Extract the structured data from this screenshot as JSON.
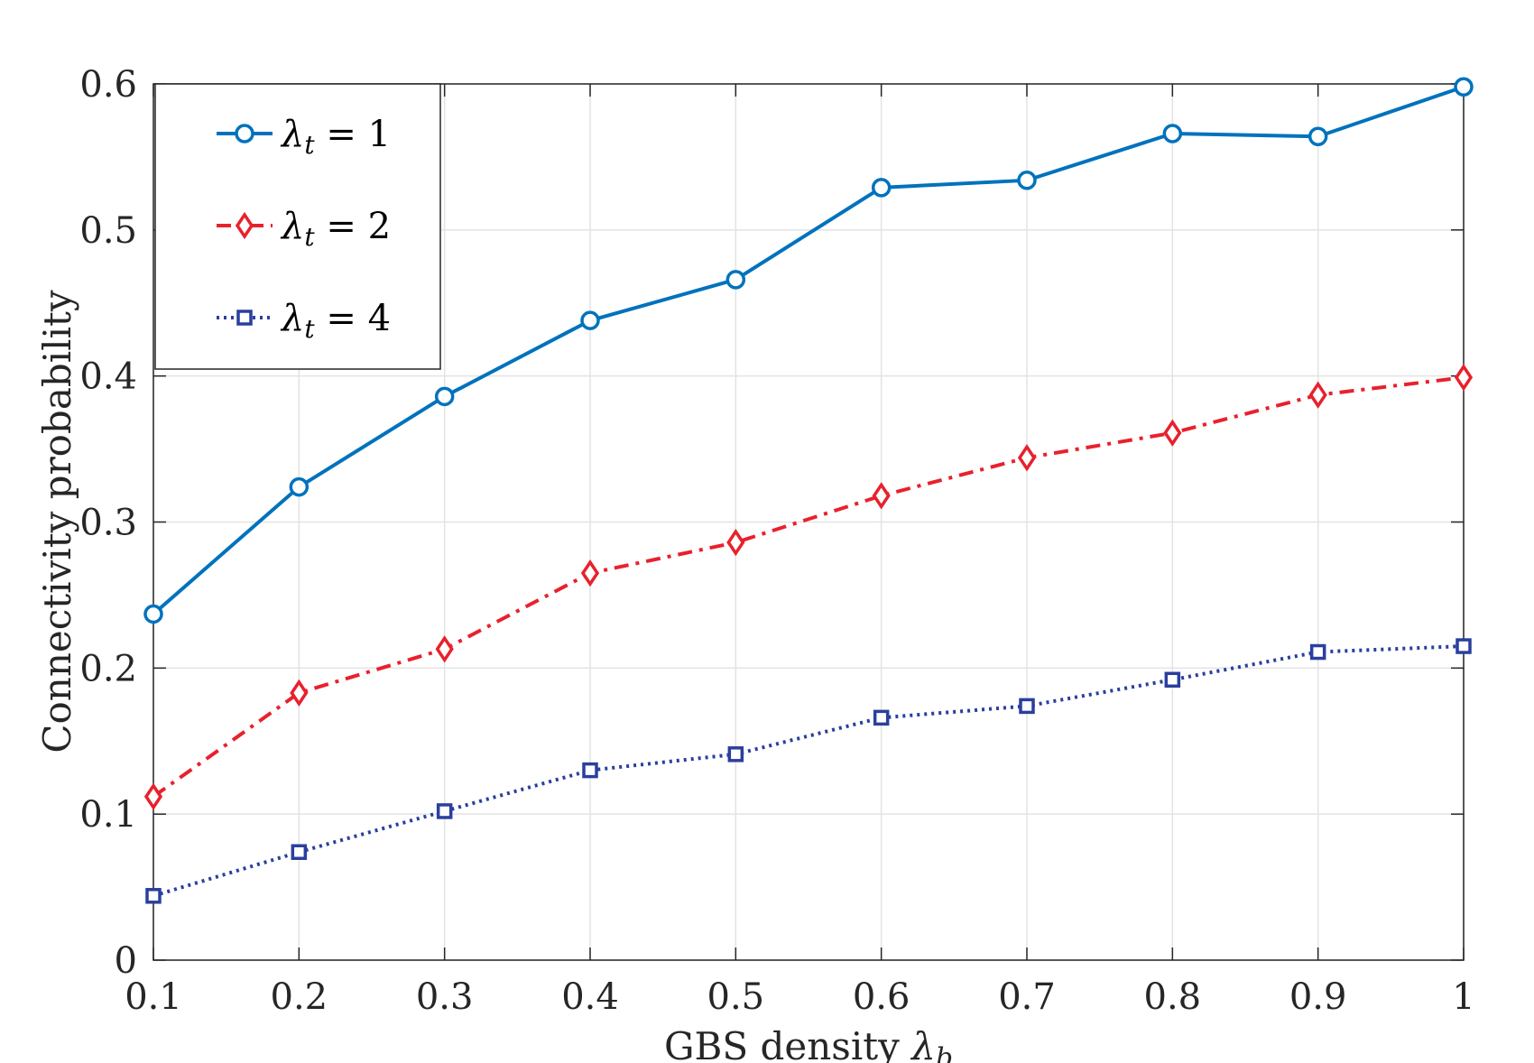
{
  "chart_data": {
    "type": "line",
    "xlabel": "GBS density",
    "xlabel_symbol": "λ",
    "xlabel_subscript": "b",
    "ylabel": "Connectivity probability",
    "x": [
      0.1,
      0.2,
      0.3,
      0.4,
      0.5,
      0.6,
      0.7,
      0.8,
      0.9,
      1.0
    ],
    "xlim": [
      0.1,
      1.0
    ],
    "ylim": [
      0,
      0.6
    ],
    "xticks": [
      "0.1",
      "0.2",
      "0.3",
      "0.4",
      "0.5",
      "0.6",
      "0.7",
      "0.8",
      "0.9",
      "1"
    ],
    "yticks": [
      "0",
      "0.1",
      "0.2",
      "0.3",
      "0.4",
      "0.5",
      "0.6"
    ],
    "ytick_values": [
      0,
      0.1,
      0.2,
      0.3,
      0.4,
      0.5,
      0.6
    ],
    "grid": true,
    "legend_position": "top-left",
    "series": [
      {
        "name": "λt = 1",
        "legend_symbol": "λ",
        "legend_subscript": "t",
        "legend_rest": " = 1",
        "color": "#0072BD",
        "marker": "circle",
        "linestyle": "solid",
        "values": [
          0.237,
          0.324,
          0.386,
          0.438,
          0.466,
          0.529,
          0.534,
          0.566,
          0.564,
          0.598
        ]
      },
      {
        "name": "λt = 2",
        "legend_symbol": "λ",
        "legend_subscript": "t",
        "legend_rest": " = 2",
        "color": "#E8212D",
        "marker": "diamond",
        "linestyle": "dashdot",
        "values": [
          0.112,
          0.183,
          0.213,
          0.265,
          0.286,
          0.318,
          0.344,
          0.361,
          0.387,
          0.399
        ]
      },
      {
        "name": "λt = 4",
        "legend_symbol": "λ",
        "legend_subscript": "t",
        "legend_rest": " = 4",
        "color": "#2A3F9E",
        "marker": "square",
        "linestyle": "dotted",
        "values": [
          0.044,
          0.074,
          0.102,
          0.13,
          0.141,
          0.166,
          0.174,
          0.192,
          0.211,
          0.215
        ]
      }
    ]
  }
}
